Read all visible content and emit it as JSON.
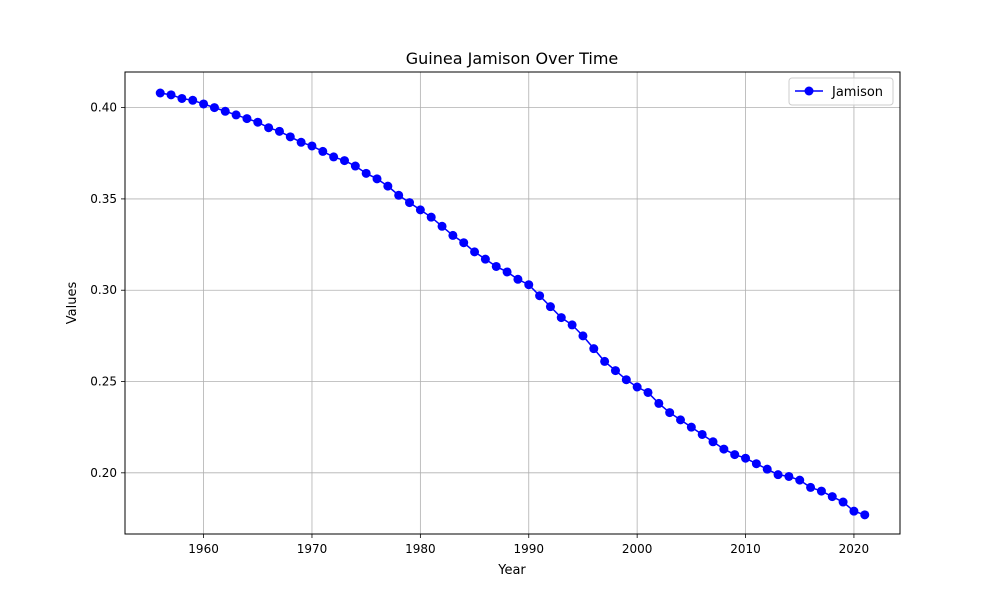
{
  "chart_data": {
    "type": "line",
    "title": "Guinea Jamison Over Time",
    "xlabel": "Year",
    "ylabel": "Values",
    "xlim": [
      1952.75,
      2024.25
    ],
    "ylim": [
      0.1665,
      0.4195
    ],
    "x_ticks": [
      1960,
      1970,
      1980,
      1990,
      2000,
      2010,
      2020
    ],
    "y_ticks": [
      0.2,
      0.25,
      0.3,
      0.35,
      0.4
    ],
    "y_tick_labels": [
      "0.20",
      "0.25",
      "0.30",
      "0.35",
      "0.40"
    ],
    "grid": true,
    "legend": {
      "position": "top-right"
    },
    "series": [
      {
        "name": "Jamison",
        "color": "#0000ff",
        "marker": "circle",
        "x": [
          1956,
          1957,
          1958,
          1959,
          1960,
          1961,
          1962,
          1963,
          1964,
          1965,
          1966,
          1967,
          1968,
          1969,
          1970,
          1971,
          1972,
          1973,
          1974,
          1975,
          1976,
          1977,
          1978,
          1979,
          1980,
          1981,
          1982,
          1983,
          1984,
          1985,
          1986,
          1987,
          1988,
          1989,
          1990,
          1991,
          1992,
          1993,
          1994,
          1995,
          1996,
          1997,
          1998,
          1999,
          2000,
          2001,
          2002,
          2003,
          2004,
          2005,
          2006,
          2007,
          2008,
          2009,
          2010,
          2011,
          2012,
          2013,
          2014,
          2015,
          2016,
          2017,
          2018,
          2019,
          2020,
          2021
        ],
        "y": [
          0.408,
          0.407,
          0.405,
          0.404,
          0.402,
          0.4,
          0.398,
          0.396,
          0.394,
          0.392,
          0.389,
          0.387,
          0.384,
          0.381,
          0.379,
          0.376,
          0.373,
          0.371,
          0.368,
          0.364,
          0.361,
          0.357,
          0.352,
          0.348,
          0.344,
          0.34,
          0.335,
          0.33,
          0.326,
          0.321,
          0.317,
          0.313,
          0.31,
          0.306,
          0.303,
          0.297,
          0.291,
          0.285,
          0.281,
          0.275,
          0.268,
          0.261,
          0.256,
          0.251,
          0.247,
          0.244,
          0.238,
          0.233,
          0.229,
          0.225,
          0.221,
          0.217,
          0.213,
          0.21,
          0.208,
          0.205,
          0.202,
          0.199,
          0.198,
          0.196,
          0.192,
          0.19,
          0.187,
          0.184,
          0.179,
          0.177
        ]
      }
    ]
  }
}
